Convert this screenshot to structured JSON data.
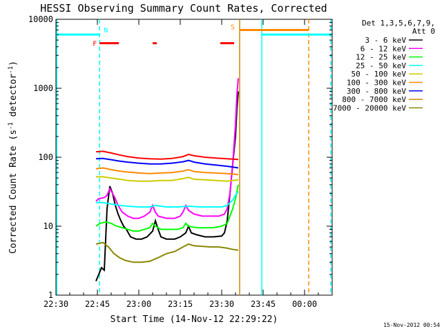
{
  "chart_data": {
    "type": "line",
    "title": "HESSI Observing Summary Count Rates, Corrected",
    "xlabel": "Start Time (14-Nov-12 22:29:22)",
    "ylabel": "Corrected Count Rate (s^-1 detector^-1)",
    "ylabel_parts": {
      "main": "Corrected Count Rate (s",
      "sup1": "-1",
      "mid": " detector",
      "sup2": "-1",
      "end": ")"
    },
    "y_scale": "log",
    "ylim": [
      1,
      10000
    ],
    "xlim_minutes": [
      0,
      100
    ],
    "x_ticks": [
      {
        "minute": 0,
        "label": "22:30"
      },
      {
        "minute": 15,
        "label": "22:45"
      },
      {
        "minute": 30,
        "label": "23:00"
      },
      {
        "minute": 45,
        "label": "23:15"
      },
      {
        "minute": 60,
        "label": "23:30"
      },
      {
        "minute": 75,
        "label": "23:45"
      },
      {
        "minute": 90,
        "label": "00:00"
      }
    ],
    "y_ticks": [
      {
        "value": 1,
        "label": "1"
      },
      {
        "value": 10,
        "label": "10"
      },
      {
        "value": 100,
        "label": "100"
      },
      {
        "value": 1000,
        "label": "1000"
      },
      {
        "value": 10000,
        "label": "10000"
      }
    ],
    "legend": {
      "position": "right",
      "header1": "Det 1,3,5,6,7,9,",
      "header2": "Att 0"
    },
    "series": [
      {
        "name": "3 - 6 keV",
        "color": "#000000",
        "points": [
          [
            14.5,
            1.6
          ],
          [
            15.5,
            2.0
          ],
          [
            16.5,
            2.5
          ],
          [
            17.5,
            2.3
          ],
          [
            18.5,
            18
          ],
          [
            19.5,
            38
          ],
          [
            20.5,
            30
          ],
          [
            21.5,
            20
          ],
          [
            22.5,
            15
          ],
          [
            23.5,
            12
          ],
          [
            24.5,
            10
          ],
          [
            25.5,
            9
          ],
          [
            27,
            7
          ],
          [
            29,
            6.5
          ],
          [
            31,
            6.5
          ],
          [
            33,
            7
          ],
          [
            35,
            8.5
          ],
          [
            36,
            12
          ],
          [
            37,
            9
          ],
          [
            38,
            7
          ],
          [
            40,
            6.5
          ],
          [
            43,
            6.5
          ],
          [
            45,
            7
          ],
          [
            47,
            8
          ],
          [
            48,
            10
          ],
          [
            49,
            8
          ],
          [
            51,
            7.5
          ],
          [
            54,
            7
          ],
          [
            57,
            7
          ],
          [
            60,
            7.2
          ],
          [
            61,
            8
          ],
          [
            62,
            12
          ],
          [
            63,
            30
          ],
          [
            64,
            80
          ],
          [
            65,
            200
          ],
          [
            65.5,
            500
          ],
          [
            66,
            900
          ]
        ]
      },
      {
        "name": "6 - 12 keV",
        "color": "#ff00ff",
        "points": [
          [
            14.5,
            23
          ],
          [
            15.5,
            25
          ],
          [
            17.5,
            26
          ],
          [
            18.5,
            28
          ],
          [
            19.5,
            35
          ],
          [
            20.5,
            30
          ],
          [
            21.5,
            25
          ],
          [
            22.5,
            20
          ],
          [
            24,
            16
          ],
          [
            26,
            14
          ],
          [
            28,
            13
          ],
          [
            30,
            13
          ],
          [
            32,
            14
          ],
          [
            34,
            16
          ],
          [
            35,
            20
          ],
          [
            36,
            16
          ],
          [
            37,
            14
          ],
          [
            40,
            13
          ],
          [
            43,
            13
          ],
          [
            45,
            14
          ],
          [
            46,
            16
          ],
          [
            47,
            20
          ],
          [
            48,
            17
          ],
          [
            50,
            15
          ],
          [
            53,
            14
          ],
          [
            56,
            14
          ],
          [
            59,
            14
          ],
          [
            61,
            15
          ],
          [
            62,
            18
          ],
          [
            63,
            30
          ],
          [
            64,
            80
          ],
          [
            65,
            300
          ],
          [
            65.5,
            800
          ],
          [
            66,
            1400
          ]
        ]
      },
      {
        "name": "12 - 25 keV",
        "color": "#00ff00",
        "points": [
          [
            14.5,
            10
          ],
          [
            16,
            11
          ],
          [
            18,
            11.5
          ],
          [
            20,
            11
          ],
          [
            22,
            10
          ],
          [
            24,
            9.5
          ],
          [
            26,
            9
          ],
          [
            28,
            8.5
          ],
          [
            30,
            8.5
          ],
          [
            32,
            9
          ],
          [
            34,
            9.5
          ],
          [
            35,
            11
          ],
          [
            36,
            10
          ],
          [
            38,
            9
          ],
          [
            41,
            9
          ],
          [
            44,
            9
          ],
          [
            46,
            9.5
          ],
          [
            47,
            11
          ],
          [
            48,
            10
          ],
          [
            51,
            9.5
          ],
          [
            54,
            9.5
          ],
          [
            57,
            9.5
          ],
          [
            60,
            10
          ],
          [
            62,
            11
          ],
          [
            63,
            14
          ],
          [
            64,
            18
          ],
          [
            65,
            25
          ],
          [
            66,
            40
          ]
        ]
      },
      {
        "name": "25 - 50 keV",
        "color": "#00ffff",
        "points": [
          [
            14.5,
            22
          ],
          [
            17,
            22
          ],
          [
            20,
            21
          ],
          [
            23,
            20
          ],
          [
            26,
            19.5
          ],
          [
            30,
            19
          ],
          [
            34,
            19
          ],
          [
            36,
            20
          ],
          [
            40,
            19
          ],
          [
            44,
            19
          ],
          [
            48,
            19.5
          ],
          [
            52,
            19
          ],
          [
            56,
            19
          ],
          [
            60,
            19
          ],
          [
            62,
            20
          ],
          [
            64,
            24
          ],
          [
            65,
            28
          ],
          [
            66,
            32
          ]
        ]
      },
      {
        "name": "50 - 100 keV",
        "color": "#cccc00",
        "points": [
          [
            14.5,
            52
          ],
          [
            17,
            52
          ],
          [
            20,
            50
          ],
          [
            23,
            48
          ],
          [
            26,
            46
          ],
          [
            30,
            45
          ],
          [
            34,
            45
          ],
          [
            38,
            46
          ],
          [
            42,
            46
          ],
          [
            46,
            49
          ],
          [
            48,
            51
          ],
          [
            50,
            48
          ],
          [
            54,
            47
          ],
          [
            58,
            46
          ],
          [
            62,
            45
          ],
          [
            64,
            46
          ],
          [
            66,
            47
          ]
        ]
      },
      {
        "name": "100 - 300 keV",
        "color": "#ff8800",
        "points": [
          [
            14.5,
            68
          ],
          [
            17,
            70
          ],
          [
            20,
            66
          ],
          [
            23,
            63
          ],
          [
            26,
            61
          ],
          [
            30,
            59
          ],
          [
            34,
            58
          ],
          [
            38,
            59
          ],
          [
            42,
            60
          ],
          [
            46,
            63
          ],
          [
            48,
            66
          ],
          [
            50,
            62
          ],
          [
            54,
            60
          ],
          [
            58,
            59
          ],
          [
            62,
            58
          ],
          [
            64,
            57
          ],
          [
            66,
            56
          ]
        ]
      },
      {
        "name": "300 - 800 keV",
        "color": "#0000ff",
        "points": [
          [
            14.5,
            95
          ],
          [
            17,
            96
          ],
          [
            20,
            92
          ],
          [
            23,
            88
          ],
          [
            26,
            85
          ],
          [
            30,
            82
          ],
          [
            34,
            80
          ],
          [
            38,
            80
          ],
          [
            42,
            82
          ],
          [
            46,
            86
          ],
          [
            48,
            90
          ],
          [
            50,
            85
          ],
          [
            54,
            80
          ],
          [
            58,
            77
          ],
          [
            62,
            74
          ],
          [
            64,
            72
          ],
          [
            66,
            70
          ]
        ]
      },
      {
        "name": "800 - 7000 keV",
        "color": "#cc8800",
        "points": []
      },
      {
        "name": "7000 - 20000 keV",
        "color": "#888800",
        "points": [
          [
            14.5,
            5.5
          ],
          [
            17,
            5.8
          ],
          [
            19,
            5
          ],
          [
            21,
            4
          ],
          [
            23,
            3.5
          ],
          [
            25,
            3.2
          ],
          [
            28,
            3.0
          ],
          [
            31,
            3.0
          ],
          [
            34,
            3.1
          ],
          [
            37,
            3.5
          ],
          [
            40,
            4
          ],
          [
            43,
            4.3
          ],
          [
            46,
            5
          ],
          [
            48,
            5.5
          ],
          [
            50,
            5.2
          ],
          [
            53,
            5.1
          ],
          [
            56,
            5
          ],
          [
            59,
            5
          ],
          [
            62,
            4.8
          ],
          [
            64,
            4.6
          ],
          [
            66,
            4.5
          ]
        ]
      },
      {
        "name": "",
        "color": "#ff0000",
        "points": [
          [
            14.5,
            120
          ],
          [
            17,
            122
          ],
          [
            20,
            115
          ],
          [
            23,
            108
          ],
          [
            26,
            102
          ],
          [
            30,
            97
          ],
          [
            34,
            95
          ],
          [
            38,
            94
          ],
          [
            42,
            96
          ],
          [
            46,
            102
          ],
          [
            48,
            110
          ],
          [
            50,
            105
          ],
          [
            54,
            100
          ],
          [
            58,
            97
          ],
          [
            62,
            95
          ],
          [
            64,
            94
          ],
          [
            66,
            93
          ]
        ]
      }
    ],
    "vertical_lines": [
      {
        "minute": 0.3,
        "color": "#00ffff",
        "style": "solid"
      },
      {
        "minute": 15.8,
        "color": "#00ffff",
        "style": "dashed"
      },
      {
        "minute": 66.5,
        "color": "#cc8800",
        "style": "solid"
      },
      {
        "minute": 74.5,
        "color": "#00ffff",
        "style": "solid"
      },
      {
        "minute": 91.5,
        "color": "#ff8800",
        "style": "dashed"
      },
      {
        "minute": 99.5,
        "color": "#00ffff",
        "style": "dashed"
      }
    ],
    "markers": [
      {
        "label": "N",
        "label_color": "#00ffff",
        "color": "#00ffff",
        "y": 6000,
        "segments": [
          [
            0,
            15.8
          ],
          [
            74.5,
            99.5
          ]
        ]
      },
      {
        "label": "F",
        "label_color": "#ff0000",
        "color": "#ff0000",
        "y": 4500,
        "segments": [
          [
            15.8,
            22.8
          ],
          [
            35,
            36.5
          ],
          [
            59.5,
            64.5
          ]
        ]
      },
      {
        "label": "S",
        "label_color": "#ff8800",
        "color": "#ff8800",
        "y": 7000,
        "segments": [
          [
            66.5,
            91.5
          ]
        ]
      }
    ]
  },
  "footer": {
    "timestamp": "15-Nov-2012 00:54"
  }
}
